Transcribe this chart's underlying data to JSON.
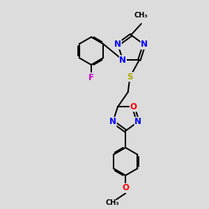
{
  "bg_color": "#dcdcdc",
  "bond_color": "#000000",
  "bond_width": 1.5,
  "atom_colors": {
    "N": "#0000ff",
    "O": "#ff0000",
    "F": "#cc00cc",
    "S": "#aaaa00",
    "C": "#000000"
  },
  "dbo": 0.06,
  "fs": 8.5
}
